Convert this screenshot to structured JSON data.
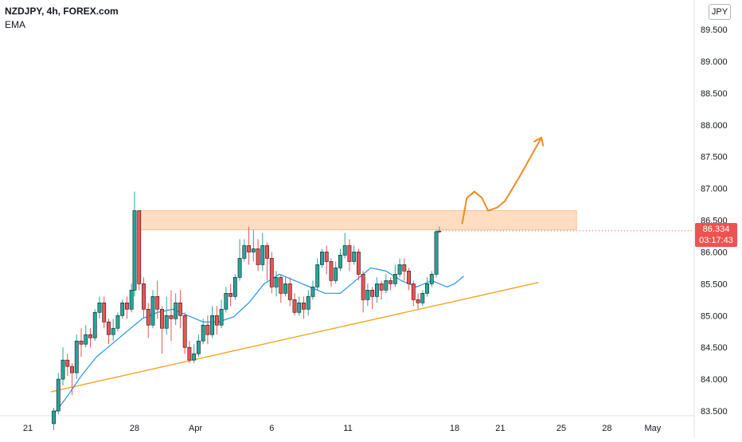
{
  "legend": {
    "symbol": "NZDJPY, 4h, FOREX.com",
    "indicator": "EMA"
  },
  "currency": "JPY",
  "current_price": {
    "value": "86.334",
    "countdown": "03:17:43"
  },
  "colors": {
    "up": "#26a69a",
    "down": "#ef5350",
    "wick": "#131722",
    "ema": "#2196f3",
    "trendline": "#f5a623",
    "zone": "#ffd7b5",
    "zone_border": "#f7a35c",
    "arrow": "#f08a24",
    "price_tag": "#ef5350"
  },
  "chart_data": {
    "type": "candlestick",
    "y_axis": {
      "min": 83.4,
      "max": 89.8,
      "ticks": [
        "89.500",
        "89.000",
        "88.500",
        "88.000",
        "87.500",
        "87.000",
        "86.500",
        "86.000",
        "85.500",
        "85.000",
        "84.500",
        "84.000",
        "83.500"
      ]
    },
    "x_ticks": [
      {
        "label": "21",
        "day": 21
      },
      {
        "label": "28",
        "day": 28
      },
      {
        "label": "Apr",
        "day": 32
      },
      {
        "label": "6",
        "day": 37
      },
      {
        "label": "11",
        "day": 42
      },
      {
        "label": "18",
        "day": 49
      },
      {
        "label": "21",
        "day": 52
      },
      {
        "label": "25",
        "day": 56
      },
      {
        "label": "28",
        "day": 59
      },
      {
        "label": "May",
        "day": 62
      }
    ],
    "x_range": [
      19.2,
      63.7
    ],
    "resistance_zone": {
      "low": 86.35,
      "high": 86.65,
      "from_day": 28.2,
      "to_day": 57.0
    },
    "trendline": {
      "from": [
        22.5,
        83.8
      ],
      "to": [
        54.5,
        85.52
      ]
    },
    "projection": [
      [
        49.5,
        86.45
      ],
      [
        49.8,
        86.85
      ],
      [
        50.3,
        86.95
      ],
      [
        50.8,
        86.85
      ],
      [
        51.2,
        86.65
      ],
      [
        51.8,
        86.7
      ],
      [
        52.3,
        86.8
      ],
      [
        53.3,
        87.2
      ],
      [
        54.0,
        87.5
      ],
      [
        54.7,
        87.8
      ]
    ],
    "ema": [
      [
        22.7,
        83.45
      ],
      [
        23.5,
        83.7
      ],
      [
        24.5,
        84.05
      ],
      [
        25.5,
        84.35
      ],
      [
        26.5,
        84.55
      ],
      [
        27.5,
        84.75
      ],
      [
        28.5,
        84.95
      ],
      [
        29.5,
        85.05
      ],
      [
        30.5,
        85.1
      ],
      [
        31.5,
        85.0
      ],
      [
        32.5,
        84.9
      ],
      [
        33.5,
        84.9
      ],
      [
        34.5,
        84.98
      ],
      [
        35.5,
        85.2
      ],
      [
        36.5,
        85.5
      ],
      [
        37.5,
        85.65
      ],
      [
        38.5,
        85.55
      ],
      [
        39.5,
        85.45
      ],
      [
        40.5,
        85.35
      ],
      [
        41.5,
        85.35
      ],
      [
        42.5,
        85.55
      ],
      [
        43.5,
        85.75
      ],
      [
        44.5,
        85.7
      ],
      [
        45.5,
        85.55
      ],
      [
        46.5,
        85.45
      ],
      [
        47.5,
        85.55
      ],
      [
        48.5,
        85.45
      ],
      [
        49.0,
        85.5
      ],
      [
        49.6,
        85.62
      ]
    ],
    "candles": [
      [
        22.7,
        83.3,
        83.5,
        83.2,
        83.55
      ],
      [
        23.0,
        83.5,
        84.0,
        83.45,
        84.1
      ],
      [
        23.3,
        84.0,
        84.3,
        83.9,
        84.5
      ],
      [
        23.6,
        84.3,
        84.2,
        84.05,
        84.4
      ],
      [
        23.9,
        84.2,
        84.1,
        83.75,
        84.25
      ],
      [
        24.2,
        84.1,
        84.6,
        84.0,
        84.7
      ],
      [
        24.5,
        84.6,
        84.55,
        84.35,
        84.8
      ],
      [
        24.8,
        84.55,
        84.7,
        84.5,
        84.85
      ],
      [
        25.1,
        84.7,
        84.65,
        84.5,
        84.8
      ],
      [
        25.4,
        84.65,
        85.05,
        84.6,
        85.1
      ],
      [
        25.7,
        85.05,
        85.2,
        84.95,
        85.3
      ],
      [
        26.0,
        85.2,
        84.9,
        84.8,
        85.3
      ],
      [
        26.3,
        84.9,
        84.7,
        84.55,
        84.95
      ],
      [
        26.6,
        84.7,
        84.8,
        84.6,
        84.95
      ],
      [
        26.9,
        84.8,
        85.0,
        84.75,
        85.05
      ],
      [
        27.2,
        85.0,
        85.2,
        84.95,
        85.25
      ],
      [
        27.5,
        85.2,
        85.1,
        84.95,
        85.3
      ],
      [
        27.8,
        85.1,
        85.4,
        85.05,
        85.5
      ],
      [
        28.0,
        85.4,
        86.65,
        85.3,
        86.95
      ],
      [
        28.3,
        86.65,
        85.5,
        85.4,
        86.65
      ],
      [
        28.6,
        85.5,
        85.1,
        84.95,
        85.6
      ],
      [
        28.9,
        85.1,
        84.85,
        84.65,
        85.2
      ],
      [
        29.2,
        84.85,
        85.3,
        84.8,
        85.4
      ],
      [
        29.5,
        85.3,
        85.1,
        84.95,
        85.55
      ],
      [
        29.8,
        85.1,
        84.8,
        84.4,
        85.15
      ],
      [
        30.1,
        84.8,
        85.0,
        84.7,
        85.3
      ],
      [
        30.4,
        85.0,
        84.95,
        84.6,
        85.4
      ],
      [
        30.7,
        84.95,
        85.2,
        84.85,
        85.35
      ],
      [
        31.0,
        85.2,
        85.0,
        84.8,
        85.4
      ],
      [
        31.3,
        85.0,
        84.5,
        84.4,
        85.05
      ],
      [
        31.6,
        84.5,
        84.3,
        84.25,
        84.6
      ],
      [
        31.9,
        84.3,
        84.4,
        84.25,
        84.55
      ],
      [
        32.2,
        84.4,
        84.6,
        84.35,
        84.7
      ],
      [
        32.5,
        84.6,
        84.85,
        84.55,
        84.95
      ],
      [
        32.8,
        84.85,
        84.7,
        84.55,
        85.0
      ],
      [
        33.1,
        84.7,
        85.0,
        84.65,
        85.15
      ],
      [
        33.4,
        85.0,
        84.85,
        84.7,
        85.15
      ],
      [
        33.7,
        84.85,
        85.1,
        84.8,
        85.25
      ],
      [
        34.0,
        85.1,
        85.35,
        85.05,
        85.45
      ],
      [
        34.3,
        85.35,
        85.3,
        85.15,
        85.5
      ],
      [
        34.6,
        85.3,
        85.6,
        85.25,
        85.65
      ],
      [
        34.9,
        85.6,
        85.9,
        85.55,
        86.2
      ],
      [
        35.2,
        85.9,
        86.1,
        85.85,
        86.2
      ],
      [
        35.5,
        86.1,
        86.0,
        85.8,
        86.4
      ],
      [
        35.8,
        86.0,
        86.05,
        85.85,
        86.35
      ],
      [
        36.1,
        86.05,
        85.8,
        85.7,
        86.2
      ],
      [
        36.4,
        85.8,
        86.1,
        85.7,
        86.3
      ],
      [
        36.7,
        86.1,
        85.9,
        85.55,
        86.15
      ],
      [
        37.0,
        85.9,
        85.45,
        85.35,
        86.0
      ],
      [
        37.3,
        85.45,
        85.6,
        85.3,
        85.7
      ],
      [
        37.6,
        85.6,
        85.35,
        85.2,
        85.65
      ],
      [
        37.9,
        85.35,
        85.5,
        85.3,
        85.6
      ],
      [
        38.2,
        85.5,
        85.25,
        85.15,
        85.6
      ],
      [
        38.5,
        85.25,
        85.05,
        85.0,
        85.35
      ],
      [
        38.8,
        85.05,
        85.2,
        85.0,
        85.3
      ],
      [
        39.1,
        85.2,
        85.1,
        84.95,
        85.3
      ],
      [
        39.4,
        85.1,
        85.3,
        85.0,
        85.4
      ],
      [
        39.7,
        85.3,
        85.45,
        85.25,
        85.55
      ],
      [
        40.0,
        85.45,
        85.8,
        85.4,
        85.9
      ],
      [
        40.3,
        85.8,
        86.0,
        85.75,
        86.05
      ],
      [
        40.6,
        86.0,
        85.85,
        85.65,
        86.1
      ],
      [
        40.9,
        85.85,
        85.55,
        85.45,
        85.9
      ],
      [
        41.2,
        85.55,
        85.75,
        85.5,
        85.85
      ],
      [
        41.5,
        85.75,
        85.95,
        85.7,
        86.05
      ],
      [
        41.8,
        85.95,
        86.1,
        85.9,
        86.3
      ],
      [
        42.1,
        86.1,
        85.85,
        85.7,
        86.2
      ],
      [
        42.4,
        85.85,
        86.0,
        85.8,
        86.1
      ],
      [
        42.7,
        86.0,
        85.65,
        85.55,
        86.05
      ],
      [
        43.0,
        85.65,
        85.25,
        85.05,
        85.7
      ],
      [
        43.3,
        85.25,
        85.4,
        85.15,
        85.5
      ],
      [
        43.6,
        85.4,
        85.3,
        85.1,
        85.45
      ],
      [
        43.9,
        85.3,
        85.5,
        85.2,
        85.6
      ],
      [
        44.2,
        85.5,
        85.4,
        85.25,
        85.55
      ],
      [
        44.5,
        85.4,
        85.55,
        85.35,
        85.65
      ],
      [
        44.8,
        85.55,
        85.5,
        85.4,
        85.6
      ],
      [
        45.1,
        85.5,
        85.65,
        85.45,
        85.8
      ],
      [
        45.4,
        85.65,
        85.8,
        85.6,
        85.9
      ],
      [
        45.7,
        85.8,
        85.7,
        85.55,
        85.9
      ],
      [
        46.0,
        85.7,
        85.5,
        85.4,
        85.75
      ],
      [
        46.3,
        85.5,
        85.25,
        85.15,
        85.55
      ],
      [
        46.6,
        85.25,
        85.2,
        85.1,
        85.35
      ],
      [
        46.9,
        85.2,
        85.35,
        85.15,
        85.4
      ],
      [
        47.2,
        85.35,
        85.5,
        85.3,
        85.6
      ],
      [
        47.5,
        85.5,
        85.65,
        85.45,
        85.7
      ],
      [
        47.8,
        85.65,
        86.32,
        85.6,
        86.35
      ],
      [
        48.0,
        86.32,
        86.33,
        86.3,
        86.4
      ]
    ],
    "candle_day_offset": 0.0,
    "candle_spacing": 0.315,
    "candle_x_start": 22.7
  }
}
